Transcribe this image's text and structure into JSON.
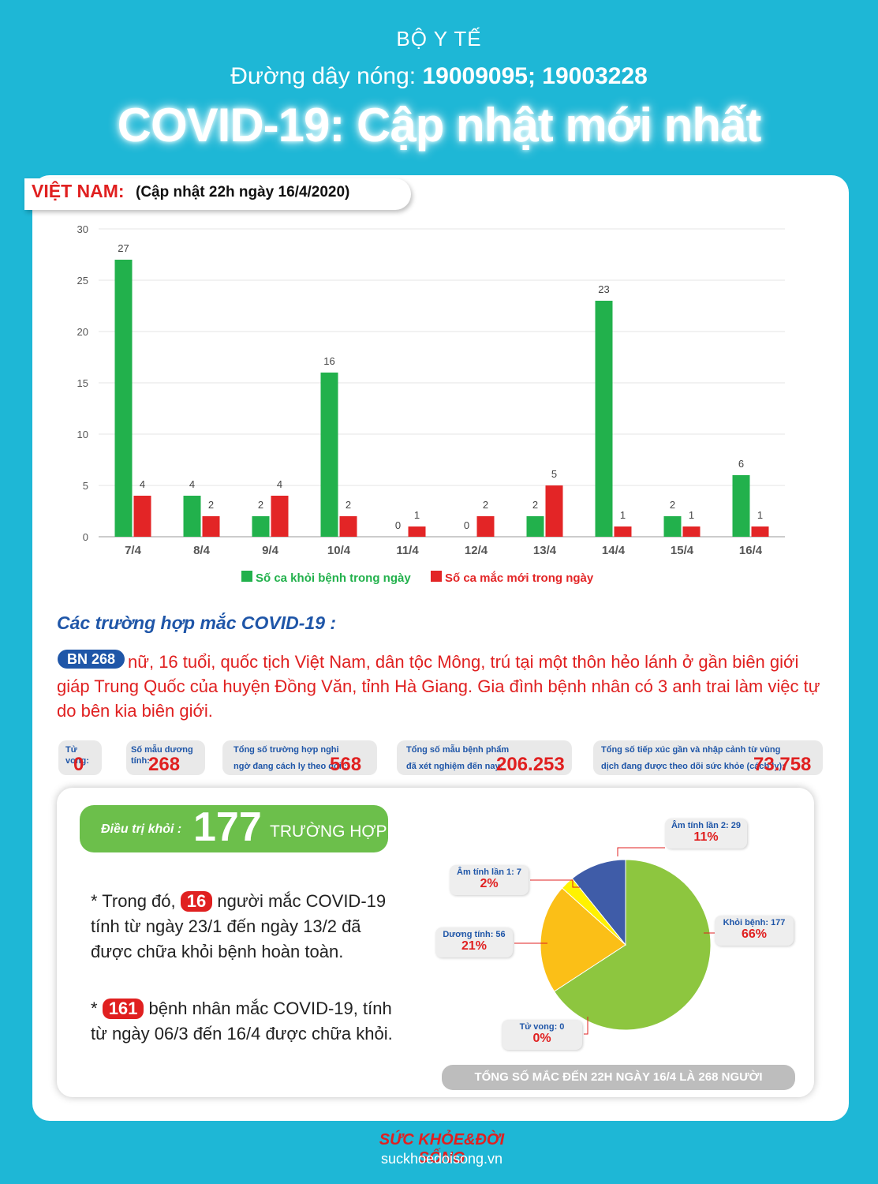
{
  "header": {
    "org": "BỘ Y TẾ",
    "hotline_label": "Đường dây nóng: ",
    "hotline_numbers": "19009095; 19003228",
    "title": "COVID-19: Cập nhật mới nhất"
  },
  "vn_section": {
    "label": "VIỆT NAM:",
    "updated": "(Cập nhật 22h ngày 16/4/2020)"
  },
  "colors": {
    "recovered": "#22b14c",
    "new_cases": "#e32526",
    "accent_blue": "#1f56a8",
    "background": "#1eb7d6"
  },
  "chart_data": [
    {
      "type": "bar",
      "categories": [
        "7/4",
        "8/4",
        "9/4",
        "10/4",
        "11/4",
        "12/4",
        "13/4",
        "14/4",
        "15/4",
        "16/4"
      ],
      "series": [
        {
          "name": "Số ca khỏi bệnh trong ngày",
          "values": [
            27,
            4,
            2,
            16,
            0,
            0,
            2,
            23,
            2,
            6
          ]
        },
        {
          "name": "Số ca mắc mới  trong ngày",
          "values": [
            4,
            2,
            4,
            2,
            1,
            2,
            5,
            1,
            1,
            1
          ]
        }
      ],
      "yticks": [
        "0",
        "5",
        "10",
        "15",
        "20",
        "25",
        "30"
      ],
      "ylim": [
        0,
        30
      ],
      "grid": true,
      "legend": "bottom"
    },
    {
      "type": "pie",
      "labels": [
        "Khỏi bệnh: 177",
        "Dương tính: 56",
        "Âm tính lần 1: 7",
        "Âm tính lần 2: 29",
        "Tử vong: 0"
      ],
      "values": [
        177,
        56,
        7,
        29,
        0
      ],
      "percents": [
        "66%",
        "21%",
        "2%",
        "11%",
        "0%"
      ],
      "colors": [
        "#8dc63f",
        "#fbbf17",
        "#fff200",
        "#3f5ca8",
        "#e02020"
      ]
    }
  ],
  "cases": {
    "heading": "Các trường hợp mắc COVID-19 :",
    "badge": "BN 268",
    "text": "nữ, 16 tuổi, quốc tịch Việt Nam, dân tộc Mông, trú tại một thôn hẻo lánh ở gần biên giới giáp Trung Quốc của huyện Đồng Văn, tỉnh Hà Giang. Gia đình bệnh nhân có 3 anh trai làm việc tự do bên kia biên giới."
  },
  "stats": {
    "deaths_label": "Tử vong:",
    "deaths": "0",
    "positive_label": "Số mẫu dương tính:",
    "positive": "268",
    "suspected_label_1": "Tổng số trường hợp nghi",
    "suspected_label_2": "ngờ đang cách ly theo dõi :",
    "suspected": "568",
    "tested_label_1": "Tổng số mẫu bệnh phẩm",
    "tested_label_2": "đã xét nghiệm đến nay:",
    "tested": "206.253",
    "contacts_label_1": "Tổng số tiếp xúc gần và nhập cảnh từ vùng",
    "contacts_label_2": "dịch đang được theo dõi sức khỏe (cách ly):",
    "contacts": "73.758"
  },
  "recovery": {
    "label": "Điều trị khỏi :",
    "count": "177",
    "unit": "TRƯỜNG HỢP",
    "note1_pre": "* Trong đó, ",
    "note1_num": "16",
    "note1_post": " người mắc COVID-19 tính từ ngày 23/1 đến ngày 13/2 đã được chữa khỏi bệnh hoàn toàn.",
    "note2_pre": "* ",
    "note2_num": "161",
    "note2_post": " bệnh nhân  mắc COVID-19, tính từ ngày 06/3 đến 16/4 được chữa khỏi.",
    "total": "TỔNG SỐ MẮC ĐẾN 22H NGÀY 16/4 LÀ 268 NGƯỜI"
  },
  "footer": {
    "brand": "SỨC KHỎE&ĐỜI SỐNG",
    "site": "suckhoedoisong.vn"
  }
}
